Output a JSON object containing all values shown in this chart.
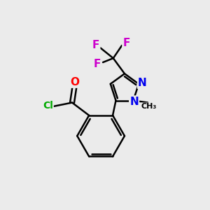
{
  "background_color": "#ebebeb",
  "bond_color": "#000000",
  "atom_colors": {
    "N": "#0000ee",
    "O": "#ff0000",
    "Cl": "#00aa00",
    "F": "#cc00cc",
    "C": "#000000"
  },
  "figsize": [
    3.0,
    3.0
  ],
  "dpi": 100
}
